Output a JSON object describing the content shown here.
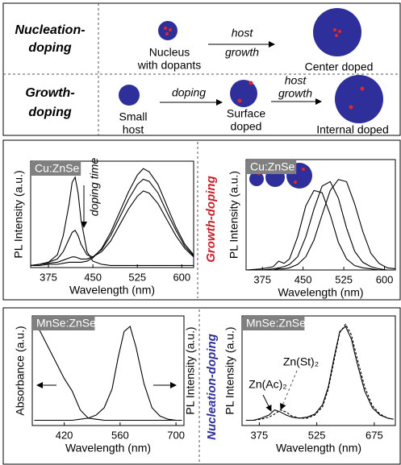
{
  "diagram": {
    "rows": [
      {
        "label": [
          "Nucleation-",
          "doping"
        ],
        "texts": [
          "Nucleus",
          "with dopants",
          "host",
          "growth",
          "Center doped"
        ]
      },
      {
        "label": [
          "Growth-",
          "doping"
        ],
        "texts": [
          "Small",
          "host",
          "doping",
          "Surface",
          "doped",
          "host",
          "growth",
          "Internal doped"
        ]
      }
    ]
  },
  "side_labels": [
    "Growth-doping",
    "Nucleation-doping"
  ],
  "chart_data": [
    {
      "type": "line",
      "title": "Cu:ZnSe",
      "x_label": "Wavelength (nm)",
      "y_label": "PL Intensity (a.u.)",
      "annotations": [
        "doping time"
      ],
      "xlim": [
        345,
        620
      ],
      "xticks": [
        375,
        450,
        525,
        600
      ],
      "ylim": [
        0,
        1
      ],
      "x": [
        345,
        360,
        375,
        390,
        400,
        410,
        415,
        420,
        425,
        430,
        440,
        450,
        465,
        480,
        495,
        510,
        525,
        535,
        545,
        560,
        575,
        590,
        605,
        620
      ],
      "series": [
        {
          "color": "#000000",
          "values": [
            0.02,
            0.03,
            0.05,
            0.12,
            0.3,
            0.6,
            0.8,
            0.85,
            0.7,
            0.45,
            0.15,
            0.06,
            0.03,
            0.02,
            0.02,
            0.02,
            0.02,
            0.02,
            0.02,
            0.02,
            0.02,
            0.02,
            0.02,
            0.02
          ]
        },
        {
          "color": "#000000",
          "values": [
            0.02,
            0.03,
            0.05,
            0.08,
            0.15,
            0.27,
            0.33,
            0.35,
            0.3,
            0.22,
            0.12,
            0.1,
            0.15,
            0.25,
            0.4,
            0.55,
            0.67,
            0.72,
            0.7,
            0.6,
            0.45,
            0.3,
            0.18,
            0.1
          ]
        },
        {
          "color": "#000000",
          "values": [
            0.02,
            0.03,
            0.04,
            0.05,
            0.07,
            0.09,
            0.1,
            0.1,
            0.09,
            0.08,
            0.08,
            0.1,
            0.17,
            0.3,
            0.47,
            0.64,
            0.78,
            0.83,
            0.81,
            0.7,
            0.52,
            0.35,
            0.2,
            0.11
          ]
        },
        {
          "color": "#000000",
          "values": [
            0.02,
            0.02,
            0.03,
            0.03,
            0.04,
            0.05,
            0.05,
            0.05,
            0.05,
            0.05,
            0.06,
            0.09,
            0.18,
            0.33,
            0.52,
            0.71,
            0.87,
            0.93,
            0.9,
            0.78,
            0.58,
            0.38,
            0.22,
            0.12
          ]
        }
      ]
    },
    {
      "type": "line",
      "title": "Cu:ZnSe",
      "x_label": "Wavelength (nm)",
      "y_label": "PL Intensity (a.u.)",
      "xlim": [
        345,
        620
      ],
      "xticks": [
        375,
        450,
        525,
        600
      ],
      "ylim": [
        0,
        1
      ],
      "x": [
        345,
        375,
        395,
        405,
        415,
        425,
        440,
        455,
        470,
        485,
        500,
        515,
        530,
        545,
        560,
        575,
        590,
        605,
        620
      ],
      "series": [
        {
          "color": "#000000",
          "values": [
            0,
            0.01,
            0.03,
            0.08,
            0.06,
            0.1,
            0.3,
            0.58,
            0.72,
            0.7,
            0.5,
            0.25,
            0.1,
            0.04,
            0.02,
            0.01,
            0,
            0,
            0
          ]
        },
        {
          "color": "#000000",
          "values": [
            0,
            0,
            0.01,
            0.02,
            0.03,
            0.05,
            0.12,
            0.3,
            0.55,
            0.76,
            0.8,
            0.65,
            0.38,
            0.17,
            0.07,
            0.03,
            0.01,
            0,
            0
          ]
        },
        {
          "color": "#000000",
          "values": [
            0,
            0,
            0,
            0.01,
            0.01,
            0.02,
            0.05,
            0.12,
            0.27,
            0.5,
            0.72,
            0.82,
            0.8,
            0.6,
            0.35,
            0.15,
            0.06,
            0.02,
            0.01
          ]
        }
      ]
    },
    {
      "type": "line",
      "title": "MnSe:ZnSe",
      "x_label": "Wavelength (nm)",
      "y_label": "Absorbance (a.u.)",
      "y2_label": "PL Intensity (a.u.)",
      "xlim": [
        340,
        720
      ],
      "xticks": [
        420,
        560,
        700
      ],
      "ylim": [
        -0.05,
        1
      ],
      "y2lim": [
        -0.05,
        1
      ],
      "x": [
        345,
        360,
        380,
        400,
        420,
        440,
        460,
        480,
        500,
        520,
        540,
        555,
        570,
        585,
        600,
        620,
        640,
        660,
        680,
        700,
        715
      ],
      "series": [
        {
          "color": "#000000",
          "values": [
            0.95,
            0.85,
            0.7,
            0.55,
            0.4,
            0.28,
            0.1,
            0.02,
            0.01,
            0,
            0,
            0,
            0,
            0,
            0,
            0,
            0,
            0,
            0,
            0,
            0
          ]
        },
        {
          "color": "#000000",
          "axis": "y2",
          "values": [
            0,
            0,
            0,
            0,
            0,
            0,
            0.01,
            0.02,
            0.05,
            0.12,
            0.3,
            0.6,
            0.85,
            0.9,
            0.7,
            0.35,
            0.12,
            0.04,
            0.01,
            0,
            0
          ]
        }
      ]
    },
    {
      "type": "line",
      "title": "MnSe:ZnSe",
      "x_label": "Wavelength (nm)",
      "y_label": "PL Intensity (a.u.)",
      "annotations": [
        "Zn(St)₂",
        "Zn(Ac)₂"
      ],
      "xlim": [
        330,
        730
      ],
      "xticks": [
        375,
        525,
        675
      ],
      "ylim": [
        -0.05,
        1
      ],
      "x": [
        340,
        360,
        380,
        400,
        415,
        430,
        445,
        460,
        480,
        500,
        520,
        540,
        555,
        570,
        585,
        600,
        615,
        630,
        650,
        670,
        690,
        710,
        725
      ],
      "series": [
        {
          "color": "#000000",
          "values": [
            0,
            0,
            0.02,
            0.05,
            0.1,
            0.08,
            0.05,
            0.03,
            0.02,
            0.03,
            0.06,
            0.15,
            0.32,
            0.6,
            0.85,
            0.9,
            0.78,
            0.55,
            0.28,
            0.12,
            0.05,
            0.02,
            0.01
          ]
        },
        {
          "color": "#000000",
          "dash": true,
          "values": [
            0,
            0,
            0.01,
            0.03,
            0.06,
            0.1,
            0.08,
            0.04,
            0.02,
            0.02,
            0.05,
            0.13,
            0.3,
            0.57,
            0.84,
            0.92,
            0.82,
            0.6,
            0.32,
            0.14,
            0.06,
            0.02,
            0.01
          ]
        }
      ]
    }
  ]
}
